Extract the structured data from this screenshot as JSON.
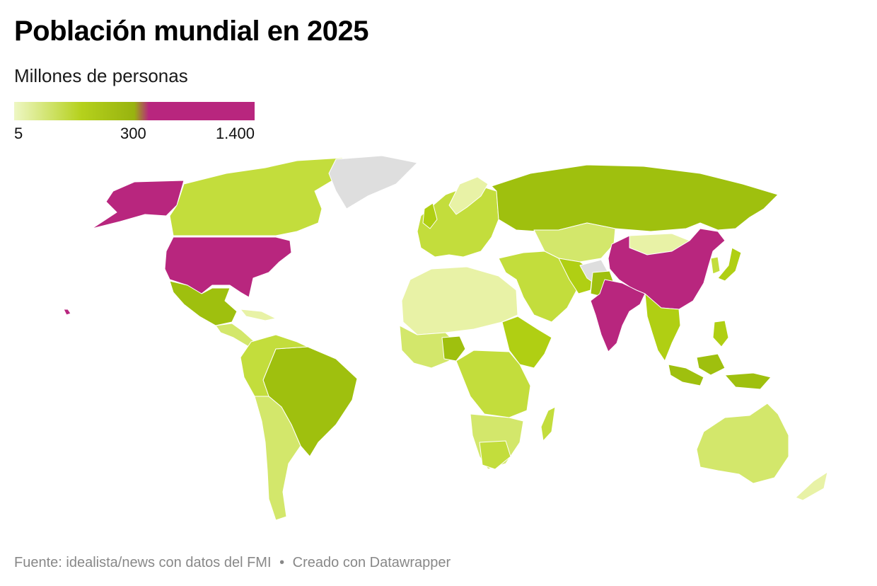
{
  "title": "Población mundial en 2025",
  "subtitle": "Millones de personas",
  "legend": {
    "min_label": "5",
    "mid_label": "300",
    "max_label": "1.400",
    "colors": {
      "low": "#eef7c4",
      "mid": "#b5d11c",
      "high_green": "#98b30f",
      "high": "#b8267e"
    }
  },
  "colors": {
    "no_data": "#dedede",
    "very_low": "#e8f2a6",
    "low": "#d3e76b",
    "medium": "#c3dd3c",
    "medium_high": "#b0cf13",
    "high": "#9fc00e",
    "top": "#b8267e",
    "border": "#ffffff"
  },
  "regions": [
    {
      "name": "Estados Unidos",
      "level": "top"
    },
    {
      "name": "Canadá",
      "level": "medium"
    },
    {
      "name": "Groenlandia",
      "level": "no_data"
    },
    {
      "name": "México",
      "level": "high"
    },
    {
      "name": "Brasil",
      "level": "high"
    },
    {
      "name": "Rusia",
      "level": "high"
    },
    {
      "name": "China",
      "level": "top"
    },
    {
      "name": "India",
      "level": "top"
    },
    {
      "name": "Australia",
      "level": "low"
    },
    {
      "name": "Indonesia",
      "level": "high"
    },
    {
      "name": "Nigeria",
      "level": "high"
    }
  ],
  "footer": {
    "source": "Fuente: idealista/news con datos del FMI",
    "separator": "•",
    "credit": "Creado con Datawrapper"
  }
}
